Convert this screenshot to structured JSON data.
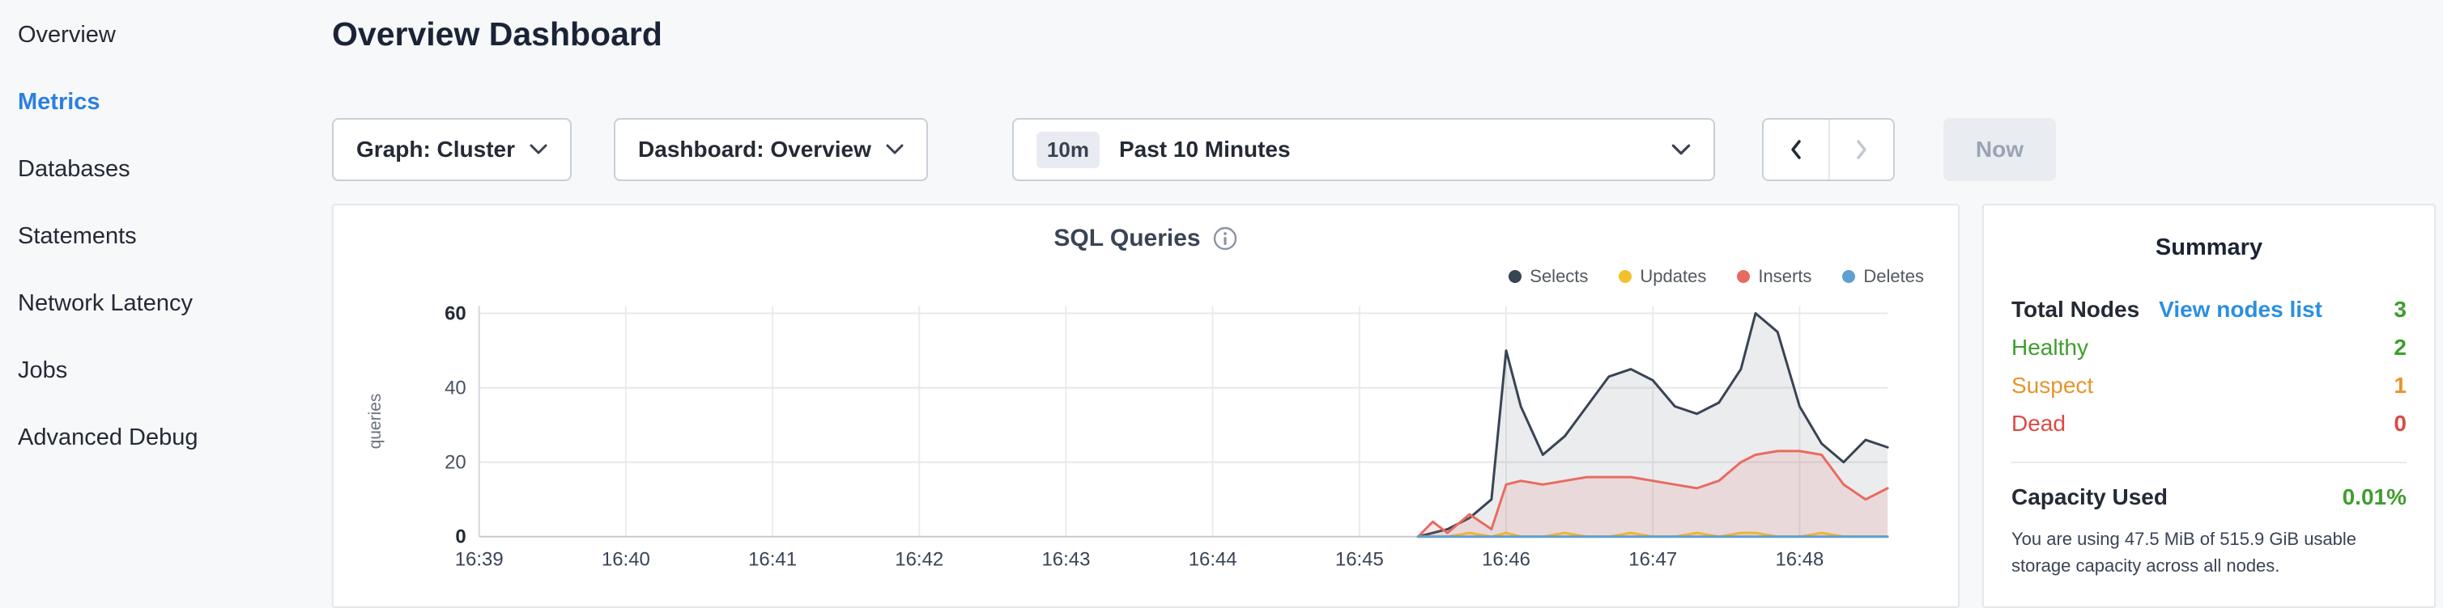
{
  "colors": {
    "active": "#2b7fe0",
    "link": "#2b8fe0",
    "green": "#3f9e2f",
    "orange": "#e8942c",
    "red": "#dd4a43"
  },
  "sidebar": {
    "items": [
      {
        "label": "Overview",
        "active": false
      },
      {
        "label": "Metrics",
        "active": true
      },
      {
        "label": "Databases",
        "active": false
      },
      {
        "label": "Statements",
        "active": false
      },
      {
        "label": "Network Latency",
        "active": false
      },
      {
        "label": "Jobs",
        "active": false
      },
      {
        "label": "Advanced Debug",
        "active": false
      }
    ]
  },
  "header": {
    "title": "Overview Dashboard"
  },
  "toolbar": {
    "graph_dropdown": "Graph: Cluster",
    "dashboard_dropdown": "Dashboard: Overview",
    "time_badge": "10m",
    "time_label": "Past 10 Minutes",
    "now_label": "Now"
  },
  "chart_data": {
    "type": "area",
    "title": "SQL Queries",
    "ylabel": "queries",
    "xlabel": "",
    "x_ticks": [
      "16:39",
      "16:40",
      "16:41",
      "16:42",
      "16:43",
      "16:44",
      "16:45",
      "16:46",
      "16:47",
      "16:48"
    ],
    "x_range": [
      0,
      9.6
    ],
    "ylim": [
      0,
      62
    ],
    "yticks": [
      0,
      20,
      40,
      60
    ],
    "grid": true,
    "legend_position": "top-right",
    "x": [
      6.4,
      6.5,
      6.6,
      6.75,
      6.9,
      7.0,
      7.1,
      7.25,
      7.4,
      7.55,
      7.7,
      7.85,
      8.0,
      8.15,
      8.3,
      8.45,
      8.6,
      8.7,
      8.85,
      9.0,
      9.15,
      9.3,
      9.45,
      9.6
    ],
    "series": [
      {
        "name": "Selects",
        "color": "#394455",
        "fill": "rgba(57,68,85,0.10)",
        "values": [
          0,
          1,
          2,
          5,
          10,
          50,
          35,
          22,
          27,
          35,
          43,
          45,
          42,
          35,
          33,
          36,
          45,
          60,
          55,
          35,
          25,
          20,
          26,
          24
        ]
      },
      {
        "name": "Updates",
        "color": "#f2c12e",
        "fill": "rgba(242,193,46,0.12)",
        "values": [
          0,
          0,
          0,
          1,
          0,
          1,
          0,
          0,
          1,
          0,
          0,
          1,
          0,
          0,
          1,
          0,
          1,
          1,
          0,
          0,
          1,
          0,
          0,
          0
        ]
      },
      {
        "name": "Inserts",
        "color": "#e86b61",
        "fill": "rgba(232,107,97,0.14)",
        "values": [
          0,
          4,
          1,
          6,
          2,
          14,
          15,
          14,
          15,
          16,
          16,
          16,
          15,
          14,
          13,
          15,
          20,
          22,
          23,
          23,
          22,
          14,
          10,
          13
        ]
      },
      {
        "name": "Deletes",
        "color": "#5f9fd4",
        "fill": "rgba(95,159,212,0.12)",
        "values": [
          0,
          0,
          0,
          0,
          0,
          0,
          0,
          0,
          0,
          0,
          0,
          0,
          0,
          0,
          0,
          0,
          0,
          0,
          0,
          0,
          0,
          0,
          0,
          0
        ]
      }
    ]
  },
  "summary": {
    "title": "Summary",
    "total_nodes_label": "Total Nodes",
    "view_nodes_link": "View nodes list",
    "total_nodes_value": "3",
    "rows": [
      {
        "label": "Healthy",
        "value": "2",
        "color": "#3f9e2f"
      },
      {
        "label": "Suspect",
        "value": "1",
        "color": "#e8942c"
      },
      {
        "label": "Dead",
        "value": "0",
        "color": "#dd4a43"
      }
    ],
    "capacity_label": "Capacity Used",
    "capacity_value": "0.01%",
    "capacity_caption": "You are using 47.5 MiB of 515.9 GiB usable storage capacity across all nodes."
  }
}
